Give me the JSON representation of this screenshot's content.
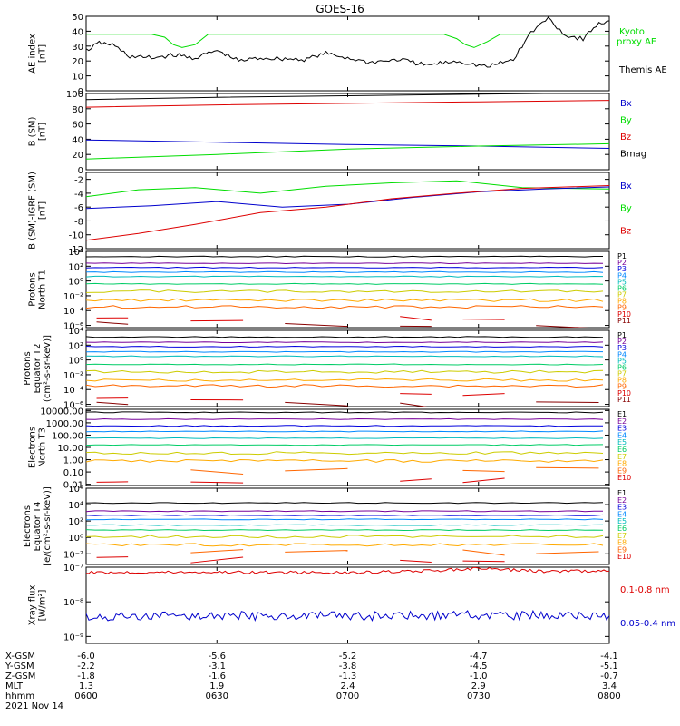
{
  "title": "GOES-16",
  "colors": {
    "frame": "#000000",
    "red": "#dd0000",
    "green": "#00dd00",
    "blue": "#0000cc",
    "darkred": "#990000",
    "p_colors": [
      "#000000",
      "#770099",
      "#0000dd",
      "#0088ff",
      "#00bbbb",
      "#00cc66",
      "#cccc00",
      "#ffaa00",
      "#ff6600",
      "#dd0000",
      "#880000"
    ],
    "e_colors": [
      "#000000",
      "#770099",
      "#0000dd",
      "#0088ff",
      "#00bbbb",
      "#00cc66",
      "#cccc00",
      "#ffaa00",
      "#ff6600",
      "#dd0000"
    ]
  },
  "x_axis": {
    "range": [
      "0600",
      "0800"
    ],
    "tick_times": [
      "0600",
      "0630",
      "0700",
      "0730",
      "0800"
    ],
    "rows": [
      {
        "label": "X-GSM",
        "values": [
          "-6.0",
          "-5.6",
          "-5.2",
          "-4.7",
          "-4.1"
        ]
      },
      {
        "label": "Y-GSM",
        "values": [
          "-2.2",
          "-3.1",
          "-3.8",
          "-4.5",
          "-5.1"
        ]
      },
      {
        "label": "Z-GSM",
        "values": [
          "-1.8",
          "-1.6",
          "-1.3",
          "-1.0",
          "-0.7"
        ]
      },
      {
        "label": "MLT",
        "values": [
          "1.3",
          "1.9",
          "2.4",
          "2.9",
          "3.4"
        ]
      },
      {
        "label": "hhmm",
        "values": [
          "0600",
          "0630",
          "0700",
          "0730",
          "0800"
        ]
      }
    ],
    "date": "2021 Nov 14"
  },
  "chart_data": [
    {
      "id": "ae",
      "type": "line",
      "ylabel": [
        "AE index",
        "[nT]"
      ],
      "scale": "linear",
      "ylim": [
        0,
        50
      ],
      "ticks": [
        "0",
        "10",
        "20",
        "30",
        "40",
        "50"
      ],
      "series": [
        {
          "name": "Kyoto proxy AE",
          "color": "green",
          "x": [
            "0600",
            "0615",
            "0618",
            "0620",
            "0622",
            "0625",
            "0628",
            "0722",
            "0725",
            "0727",
            "0729",
            "0732",
            "0735",
            "0800"
          ],
          "values": [
            38,
            38,
            36,
            31,
            29,
            31,
            38,
            38,
            35,
            31,
            29,
            33,
            38,
            38
          ]
        },
        {
          "name": "Themis AE",
          "color": "black",
          "x": [
            "0600",
            "0603",
            "0606",
            "0610",
            "0615",
            "0620",
            "0625",
            "0630",
            "0635",
            "0640",
            "0650",
            "0655",
            "0700",
            "0705",
            "0712",
            "0718",
            "0725",
            "0732",
            "0738",
            "0742",
            "0746",
            "0750",
            "0754",
            "0757",
            "0800"
          ],
          "values": [
            27,
            32,
            31,
            23,
            22,
            24,
            22,
            27,
            20,
            22,
            21,
            25,
            22,
            19,
            21,
            17,
            20,
            16,
            21,
            39,
            49,
            37,
            35,
            44,
            47
          ]
        }
      ],
      "legend": [
        {
          "text": "Kyoto",
          "color": "green"
        },
        {
          "text": "proxy AE",
          "color": "green"
        },
        {
          "text": "Themis AE",
          "color": "black"
        }
      ]
    },
    {
      "id": "bsm",
      "type": "line",
      "ylabel": [
        "B (SM)",
        "[nT]"
      ],
      "scale": "linear",
      "ylim": [
        0,
        100
      ],
      "ticks": [
        "0",
        "20",
        "40",
        "60",
        "80",
        "100"
      ],
      "series": [
        {
          "name": "Bmag",
          "color": "black",
          "x": [
            "0600",
            "0630",
            "0700",
            "0730",
            "0800"
          ],
          "values": [
            92,
            95,
            97,
            99,
            101
          ]
        },
        {
          "name": "Bz",
          "color": "red",
          "x": [
            "0600",
            "0630",
            "0700",
            "0730",
            "0800"
          ],
          "values": [
            82,
            85,
            87,
            89,
            91
          ]
        },
        {
          "name": "Bx",
          "color": "blue",
          "x": [
            "0600",
            "0630",
            "0700",
            "0730",
            "0800"
          ],
          "values": [
            39,
            36,
            33,
            31,
            28
          ]
        },
        {
          "name": "By",
          "color": "green",
          "x": [
            "0600",
            "0630",
            "0700",
            "0730",
            "0800"
          ],
          "values": [
            14,
            20,
            27,
            31,
            34
          ]
        }
      ],
      "legend": [
        {
          "text": "Bx",
          "color": "blue"
        },
        {
          "text": "By",
          "color": "green"
        },
        {
          "text": "Bz",
          "color": "red"
        },
        {
          "text": "Bmag",
          "color": "black"
        }
      ]
    },
    {
      "id": "bdiff",
      "type": "line",
      "ylabel": [
        "B (SM)-IGRF (SM)",
        "[nT]"
      ],
      "scale": "linear",
      "ylim": [
        -12,
        -1
      ],
      "ticks": [
        "-12",
        "-10",
        "-8",
        "-6",
        "-4",
        "-2"
      ],
      "series": [
        {
          "name": "By",
          "color": "green",
          "x": [
            "0600",
            "0612",
            "0625",
            "0640",
            "0655",
            "0710",
            "0725",
            "0740",
            "0800"
          ],
          "values": [
            -4.5,
            -3.5,
            -3.2,
            -4.0,
            -3.0,
            -2.5,
            -2.2,
            -3.2,
            -3.4
          ]
        },
        {
          "name": "Bx",
          "color": "blue",
          "x": [
            "0600",
            "0615",
            "0630",
            "0645",
            "0700",
            "0715",
            "0730",
            "0745",
            "0800"
          ],
          "values": [
            -6.2,
            -5.8,
            -5.2,
            -6.0,
            -5.6,
            -4.6,
            -3.8,
            -3.4,
            -3.1
          ]
        },
        {
          "name": "Bz",
          "color": "red",
          "x": [
            "0600",
            "0612",
            "0625",
            "0640",
            "0655",
            "0710",
            "0725",
            "0740",
            "0800"
          ],
          "values": [
            -10.8,
            -9.8,
            -8.5,
            -6.8,
            -6.0,
            -4.8,
            -4.0,
            -3.3,
            -2.9
          ]
        }
      ],
      "legend": [
        {
          "text": "Bx",
          "color": "blue"
        },
        {
          "text": "By",
          "color": "green"
        },
        {
          "text": "Bz",
          "color": "red"
        }
      ]
    },
    {
      "id": "pnorth",
      "type": "line",
      "ylabel": [
        "Protons",
        "North T1"
      ],
      "scale": "log",
      "ylim": [
        -6.3,
        4
      ],
      "ticks": [
        "10⁴",
        "10²",
        "10⁰",
        "10⁻²",
        "10⁻⁴",
        "10⁻⁶"
      ],
      "tick_exp": [
        4,
        2,
        0,
        -2,
        -4,
        -6
      ],
      "channels": [
        "P1",
        "P2",
        "P3",
        "P4",
        "P5",
        "P6",
        "P7",
        "P8",
        "P9",
        "P10",
        "P11"
      ],
      "levels": [
        3.3,
        2.4,
        1.8,
        1.2,
        0.6,
        -0.4,
        -1.4,
        -2.6,
        -3.5,
        -5.0,
        -6.0
      ],
      "series_note": "flat channel fluxes per level"
    },
    {
      "id": "pequator",
      "type": "line",
      "ylabel": [
        "Protons",
        "Equator T2",
        "(cm²-s-sr-keV)]"
      ],
      "scale": "log",
      "ylim": [
        -6.3,
        4
      ],
      "ticks": [
        "10⁴",
        "10²",
        "10⁰",
        "10⁻²",
        "10⁻⁴",
        "10⁻⁶"
      ],
      "tick_exp": [
        4,
        2,
        0,
        -2,
        -4,
        -6
      ],
      "channels": [
        "P1",
        "P2",
        "P3",
        "P4",
        "P5",
        "P6",
        "P7",
        "P8",
        "P9",
        "P10",
        "P11"
      ],
      "levels": [
        3.1,
        2.4,
        1.8,
        1.1,
        0.5,
        -0.6,
        -1.6,
        -2.7,
        -3.5,
        -5.0,
        -6.0
      ]
    },
    {
      "id": "enorth",
      "type": "line",
      "ylabel": [
        "Electrons",
        "North T3"
      ],
      "scale": "log",
      "ylim": [
        -2.1,
        4.1
      ],
      "ticks": [
        "10000.00",
        "1000.00",
        "100.00",
        "10.00",
        "1.00",
        "0.10",
        "0.01"
      ],
      "tick_exp": [
        4,
        3,
        2,
        1,
        0,
        -1,
        -2
      ],
      "channels": [
        "E1",
        "E2",
        "E3",
        "E4",
        "E5",
        "E6",
        "E7",
        "E8",
        "E9",
        "E10"
      ],
      "levels": [
        3.85,
        3.3,
        2.75,
        2.3,
        1.75,
        1.2,
        0.55,
        -0.1,
        -0.9,
        -1.6
      ]
    },
    {
      "id": "eequator",
      "type": "line",
      "ylabel": [
        "Electrons",
        "Equator T4",
        "[e/(cm²-s-sr-keV)]"
      ],
      "scale": "log",
      "ylim": [
        -3.3,
        6
      ],
      "ticks": [
        "10⁶",
        "10⁴",
        "10²",
        "10⁰",
        "10⁻²"
      ],
      "tick_exp": [
        6,
        4,
        2,
        0,
        -2
      ],
      "channels": [
        "E1",
        "E2",
        "E3",
        "E4",
        "E5",
        "E6",
        "E7",
        "E8",
        "E9",
        "E10"
      ],
      "levels": [
        4.2,
        3.2,
        2.7,
        2.2,
        1.5,
        0.9,
        0.1,
        -0.9,
        -1.8,
        -2.8
      ]
    },
    {
      "id": "xray",
      "type": "line",
      "ylabel": [
        "Xray flux",
        "[W/m²]"
      ],
      "scale": "log",
      "ylim": [
        -9.2,
        -7
      ],
      "ticks": [
        "10⁻⁷",
        "10⁻⁸",
        "10⁻⁹"
      ],
      "tick_exp": [
        -7,
        -8,
        -9
      ],
      "series": [
        {
          "name": "0.1-0.8 nm",
          "color": "red",
          "x": [
            "0600",
            "0630",
            "0700",
            "0720",
            "0730",
            "0745",
            "0800"
          ],
          "log_values": [
            -7.15,
            -7.14,
            -7.16,
            -7.1,
            -7.03,
            -7.12,
            -7.11
          ]
        },
        {
          "name": "0.05-0.4 nm",
          "color": "blue",
          "x": [
            "0600",
            "0630",
            "0700",
            "0730",
            "0800"
          ],
          "log_values": [
            -8.45,
            -8.4,
            -8.42,
            -8.38,
            -8.4
          ]
        }
      ],
      "legend": [
        {
          "text": "0.1-0.8 nm",
          "color": "red"
        },
        {
          "text": "0.05-0.4 nm",
          "color": "blue"
        }
      ]
    }
  ]
}
